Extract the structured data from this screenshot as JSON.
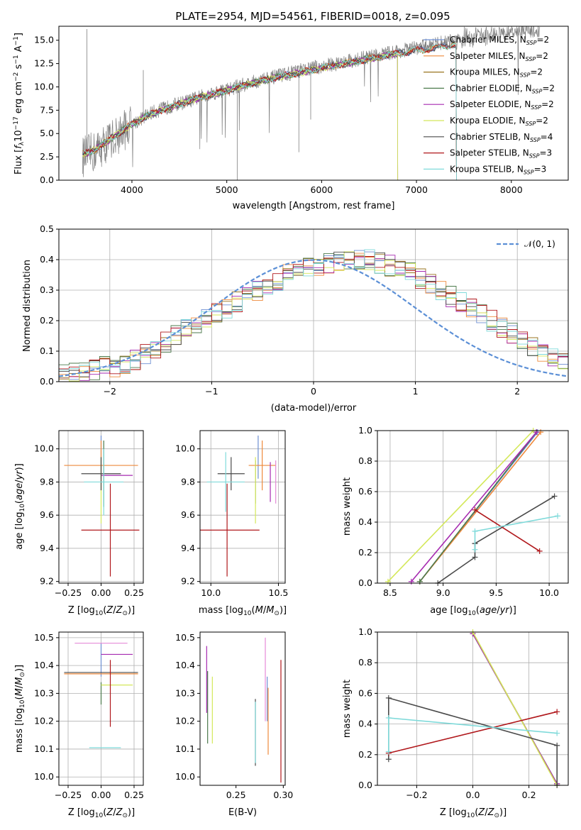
{
  "chart_data": [
    {
      "type": "line",
      "title": "PLATE=2954, MJD=54561, FIBERID=0018, z=0.095",
      "xlabel": "wavelength [Angstrom, rest frame]",
      "ylabel": "Flux [f_λ 10^-17 erg cm^-2 s^-1 A^-1]",
      "xlim": [
        3230,
        8600
      ],
      "ylim": [
        0,
        16.5
      ],
      "xticks": [
        4000,
        5000,
        6000,
        7000,
        8000
      ],
      "yticks": [
        "0.0",
        "2.5",
        "5.0",
        "7.5",
        "10.0",
        "12.5",
        "15.0"
      ],
      "grid": false,
      "legend_position": "right",
      "observed_spectrum": {
        "color": "#808080",
        "x": [
          3480,
          3600,
          3800,
          4000,
          4200,
          4400,
          4600,
          4800,
          5000,
          5200,
          5400,
          5600,
          5800,
          6000,
          6200,
          6400,
          6600,
          6800,
          7000,
          7200,
          7400,
          7600,
          7800,
          8000,
          8200
        ],
        "y": [
          2.5,
          3.0,
          4.5,
          6.0,
          7.2,
          7.9,
          8.5,
          9.2,
          9.7,
          10.3,
          10.8,
          11.3,
          11.8,
          12.2,
          12.6,
          13.0,
          13.4,
          13.8,
          14.2,
          14.6,
          15.0,
          15.3,
          15.6,
          15.8,
          16.0
        ]
      },
      "model_wavelengths": [
        3500,
        3600,
        3800,
        4000,
        4200,
        4400,
        4600,
        4800,
        5000,
        5200,
        5400,
        5600,
        5800,
        6000,
        6200,
        6400,
        6600,
        6800,
        7000,
        7200,
        7400
      ],
      "model_flux": [
        2.8,
        3.2,
        4.6,
        6.0,
        7.1,
        7.8,
        8.5,
        9.1,
        9.6,
        10.2,
        10.7,
        11.2,
        11.6,
        12.0,
        12.4,
        12.8,
        13.2,
        13.6,
        13.9,
        14.2,
        14.5
      ],
      "series": [
        {
          "name": "Chabrier MILES, N_SSP=2",
          "color": "#6d8fd3",
          "end": 7420
        },
        {
          "name": "Salpeter MILES, N_SSP=2",
          "color": "#ee8a3c",
          "end": 7420
        },
        {
          "name": "Kroupa MILES, N_SSP=2",
          "color": "#9a7520",
          "end": 7420
        },
        {
          "name": "Chabrier ELODIE, N_SSP=2",
          "color": "#4c7a4c",
          "end": 6800
        },
        {
          "name": "Salpeter ELODIE, N_SSP=2",
          "color": "#a62ab0",
          "end": 6800
        },
        {
          "name": "Kroupa ELODIE, N_SSP=2",
          "color": "#d4e85a",
          "end": 6800
        },
        {
          "name": "Chabrier STELIB, N_SSP=4",
          "color": "#4a4a4a",
          "end": 7420
        },
        {
          "name": "Salpeter STELIB, N_SSP=3",
          "color": "#b0171b",
          "end": 7420
        },
        {
          "name": "Kroupa STELIB, N_SSP=3",
          "color": "#7fdada",
          "end": 7420
        }
      ]
    },
    {
      "type": "line",
      "xlabel": "(data-model)/error",
      "ylabel": "Normed distribution",
      "xlim": [
        -2.5,
        2.5
      ],
      "ylim": [
        0,
        0.5
      ],
      "xticks": [
        "−2",
        "−1",
        "0",
        "1",
        "2"
      ],
      "yticks": [
        "0.0",
        "0.1",
        "0.2",
        "0.3",
        "0.4",
        "0.5"
      ],
      "grid": true,
      "legend": [
        "𝒩(0, 1)"
      ],
      "legend_position": "top-right",
      "gaussian_color": "#5b8fd6",
      "bin_width": 0.1,
      "bin_start": -2.5,
      "base_values": [
        0.03,
        0.03,
        0.03,
        0.04,
        0.05,
        0.05,
        0.06,
        0.07,
        0.09,
        0.1,
        0.13,
        0.15,
        0.17,
        0.19,
        0.21,
        0.23,
        0.24,
        0.26,
        0.28,
        0.3,
        0.32,
        0.33,
        0.35,
        0.36,
        0.37,
        0.38,
        0.39,
        0.39,
        0.4,
        0.4,
        0.4,
        0.39,
        0.38,
        0.37,
        0.36,
        0.34,
        0.32,
        0.3,
        0.28,
        0.26,
        0.24,
        0.22,
        0.2,
        0.18,
        0.16,
        0.14,
        0.12,
        0.1,
        0.08,
        0.07,
        0.06,
        0.05,
        0.04,
        0.04,
        0.03
      ]
    },
    {
      "type": "scatter",
      "xlabel": "Z [log10(Z/Z⊙)]",
      "ylabel": "age [log10(age/yr)]",
      "xlim": [
        -0.32,
        0.32
      ],
      "ylim": [
        9.19,
        10.11
      ],
      "xticks": [
        "−0.25",
        "0.00",
        "0.25"
      ],
      "yticks": [
        "9.2",
        "9.4",
        "9.6",
        "9.8",
        "10.0"
      ],
      "grid": true,
      "points": [
        {
          "color": "#6d8fd3",
          "x": 0.0,
          "xerr": 0.0,
          "y": 9.95,
          "yerr": 0.13
        },
        {
          "color": "#ee8a3c",
          "x": 0.0,
          "xerr": 0.28,
          "y": 9.9,
          "yerr": 0.15
        },
        {
          "color": "#4c7a4c",
          "x": 0.02,
          "xerr": 0.0,
          "y": 9.85,
          "yerr": 0.2
        },
        {
          "color": "#a62ab0",
          "x": 0.12,
          "xerr": 0.12,
          "y": 9.84,
          "yerr": 0.0
        },
        {
          "color": "#d4e85a",
          "x": 0.0,
          "xerr": 0.0,
          "y": 9.75,
          "yerr": 0.2
        },
        {
          "color": "#4a4a4a",
          "x": 0.0,
          "xerr": 0.15,
          "y": 9.85,
          "yerr": 0.1
        },
        {
          "color": "#b0171b",
          "x": 0.07,
          "xerr": 0.22,
          "y": 9.51,
          "yerr": 0.28
        },
        {
          "color": "#7fdada",
          "x": 0.02,
          "xerr": 0.15,
          "y": 9.8,
          "yerr": 0.2
        }
      ]
    },
    {
      "type": "scatter",
      "xlabel": "mass [log10(M/M⊙)]",
      "ylabel": "",
      "xlim": [
        9.92,
        10.55
      ],
      "ylim": [
        9.19,
        10.11
      ],
      "xticks": [
        "10.0",
        "10.5"
      ],
      "yticks": [
        "9.2",
        "9.4",
        "9.6",
        "9.8",
        "10.0"
      ],
      "grid": true,
      "points": [
        {
          "color": "#6d8fd3",
          "x": 10.35,
          "xerr": 0.0,
          "y": 9.95,
          "yerr": 0.13
        },
        {
          "color": "#ee8a3c",
          "x": 10.38,
          "xerr": 0.1,
          "y": 9.9,
          "yerr": 0.15
        },
        {
          "color": "#4c7a4c",
          "x": 10.33,
          "xerr": 0.0,
          "y": 9.8,
          "yerr": 0.13
        },
        {
          "color": "#a62ab0",
          "x": 10.44,
          "xerr": 0.0,
          "y": 9.8,
          "yerr": 0.12
        },
        {
          "color": "#d4e85a",
          "x": 10.33,
          "xerr": 0.0,
          "y": 9.75,
          "yerr": 0.2
        },
        {
          "color": "#4a4a4a",
          "x": 10.15,
          "xerr": 0.1,
          "y": 9.85,
          "yerr": 0.1
        },
        {
          "color": "#b0171b",
          "x": 10.12,
          "xerr": 0.24,
          "y": 9.51,
          "yerr": 0.28
        },
        {
          "color": "#7fdada",
          "x": 10.11,
          "xerr": 0.14,
          "y": 9.8,
          "yerr": 0.18
        },
        {
          "color": "#e58ad8",
          "x": 10.48,
          "xerr": 0.0,
          "y": 9.8,
          "yerr": 0.13
        }
      ]
    },
    {
      "type": "line",
      "xlabel": "age [log10(age/yr)]",
      "ylabel": "mass weight",
      "xlim": [
        8.38,
        10.18
      ],
      "ylim": [
        0,
        1.0
      ],
      "xticks": [
        "8.5",
        "9.0",
        "9.5",
        "10.0"
      ],
      "yticks": [
        "0.0",
        "0.2",
        "0.4",
        "0.6",
        "0.8",
        "1.0"
      ],
      "grid": true,
      "series": [
        {
          "color": "#6d8fd3",
          "x": [
            8.78,
            9.89
          ],
          "y": [
            0.01,
            0.99
          ]
        },
        {
          "color": "#ee8a3c",
          "x": [
            8.78,
            9.92
          ],
          "y": [
            0.01,
            0.99
          ]
        },
        {
          "color": "#4c7a4c",
          "x": [
            8.78,
            9.88
          ],
          "y": [
            0.01,
            0.99
          ]
        },
        {
          "color": "#a62ab0",
          "x": [
            8.7,
            9.88
          ],
          "y": [
            0.01,
            0.99
          ]
        },
        {
          "color": "#d4e85a",
          "x": [
            8.48,
            9.85
          ],
          "y": [
            0.01,
            1.0
          ]
        },
        {
          "color": "#4a4a4a",
          "x": [
            8.95,
            9.3,
            9.3,
            9.3,
            10.05
          ],
          "y": [
            0.0,
            0.17,
            0.26,
            0.26,
            0.57
          ]
        },
        {
          "color": "#b0171b",
          "x": [
            9.3,
            9.91
          ],
          "y": [
            0.48,
            0.21
          ]
        },
        {
          "color": "#7fdada",
          "x": [
            9.3,
            9.3,
            10.08
          ],
          "y": [
            0.22,
            0.34,
            0.44
          ]
        }
      ]
    },
    {
      "type": "scatter",
      "xlabel": "Z [log10(Z/Z⊙)]",
      "ylabel": "mass [log10(M/M⊙)]",
      "xlim": [
        -0.32,
        0.32
      ],
      "ylim": [
        9.97,
        10.52
      ],
      "xticks": [
        "−0.25",
        "0.00",
        "0.25"
      ],
      "yticks": [
        "10.0",
        "10.1",
        "10.2",
        "10.3",
        "10.4",
        "10.5"
      ],
      "grid": true,
      "points": [
        {
          "color": "#6d8fd3",
          "x": 0.0,
          "xerr": 0.0,
          "y": 10.42,
          "yerr": 0.06
        },
        {
          "color": "#ee8a3c",
          "x": 0.0,
          "xerr": 0.28,
          "y": 10.37,
          "yerr": 0.0
        },
        {
          "color": "#4c7a4c",
          "x": 0.0,
          "xerr": 0.0,
          "y": 10.3,
          "yerr": 0.04
        },
        {
          "color": "#a62ab0",
          "x": 0.12,
          "xerr": 0.12,
          "y": 10.44,
          "yerr": 0.0
        },
        {
          "color": "#d4e85a",
          "x": 0.12,
          "xerr": 0.12,
          "y": 10.33,
          "yerr": 0.0
        },
        {
          "color": "#4a4a4a",
          "x": 0.0,
          "xerr": 0.28,
          "y": 10.375,
          "yerr": 0.0
        },
        {
          "color": "#b0171b",
          "x": 0.07,
          "xerr": 0.0,
          "y": 10.3,
          "yerr": 0.12
        },
        {
          "color": "#7fdada",
          "x": 0.03,
          "xerr": 0.12,
          "y": 10.105,
          "yerr": 0.0
        },
        {
          "color": "#e58ad8",
          "x": 0.0,
          "xerr": 0.2,
          "y": 10.48,
          "yerr": 0.0
        }
      ]
    },
    {
      "type": "scatter",
      "xlabel": "E(B-V)",
      "ylabel": "",
      "xlim": [
        0.212,
        0.302
      ],
      "ylim": [
        9.97,
        10.52
      ],
      "xticks": [
        "0.25",
        "0.30"
      ],
      "yticks": [
        "10.0",
        "10.1",
        "10.2",
        "10.3",
        "10.4",
        "10.5"
      ],
      "grid": false,
      "points": [
        {
          "color": "#a62ab0",
          "x": 0.219,
          "y": 10.35,
          "yerr": 0.12
        },
        {
          "color": "#4c7a4c",
          "x": 0.22,
          "y": 10.25,
          "yerr": 0.13
        },
        {
          "color": "#d4e85a",
          "x": 0.225,
          "y": 10.24,
          "yerr": 0.12
        },
        {
          "color": "#4a4a4a",
          "x": 0.2705,
          "y": 10.16,
          "yerr": 0.12
        },
        {
          "color": "#7fdada",
          "x": 0.2705,
          "y": 10.16,
          "yerr": 0.11
        },
        {
          "color": "#6d8fd3",
          "x": 0.283,
          "y": 10.28,
          "yerr": 0.08
        },
        {
          "color": "#e58ad8",
          "x": 0.281,
          "y": 10.35,
          "yerr": 0.15
        },
        {
          "color": "#ee8a3c",
          "x": 0.284,
          "y": 10.2,
          "yerr": 0.12
        },
        {
          "color": "#b0171b",
          "x": 0.2975,
          "y": 10.2,
          "yerr": 0.22
        }
      ]
    },
    {
      "type": "line",
      "xlabel": "Z [log10(Z/Z⊙)]",
      "ylabel": "mass weight",
      "xlim": [
        -0.34,
        0.34
      ],
      "ylim": [
        0,
        1.0
      ],
      "xticks": [
        "−0.2",
        "0.0",
        "0.2"
      ],
      "yticks": [
        "0.0",
        "0.2",
        "0.4",
        "0.6",
        "0.8",
        "1.0"
      ],
      "grid": true,
      "series": [
        {
          "color": "#6d8fd3",
          "x": [
            0.0,
            0.3
          ],
          "y": [
            0.99,
            0.01
          ]
        },
        {
          "color": "#ee8a3c",
          "x": [
            0.0,
            0.3
          ],
          "y": [
            0.99,
            0.01
          ]
        },
        {
          "color": "#4c7a4c",
          "x": [
            0.0,
            0.3
          ],
          "y": [
            0.99,
            0.01
          ]
        },
        {
          "color": "#a62ab0",
          "x": [
            0.0,
            0.3
          ],
          "y": [
            0.99,
            0.01
          ]
        },
        {
          "color": "#d4e85a",
          "x": [
            0.0,
            0.3
          ],
          "y": [
            1.0,
            0.0
          ]
        },
        {
          "color": "#4a4a4a",
          "x": [
            -0.3,
            -0.3,
            0.3,
            0.3
          ],
          "y": [
            0.17,
            0.57,
            0.26,
            0.0
          ]
        },
        {
          "color": "#b0171b",
          "x": [
            -0.3,
            0.3
          ],
          "y": [
            0.21,
            0.48
          ]
        },
        {
          "color": "#7fdada",
          "x": [
            -0.3,
            -0.3,
            0.3
          ],
          "y": [
            0.22,
            0.44,
            0.34
          ]
        }
      ]
    }
  ]
}
